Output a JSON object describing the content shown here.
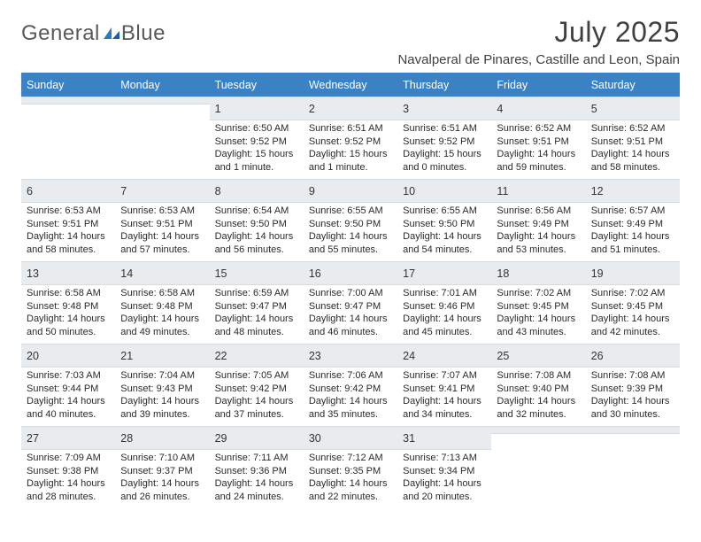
{
  "brand": {
    "word1": "General",
    "word2": "Blue"
  },
  "title": "July 2025",
  "location": "Navalperal de Pinares, Castille and Leon, Spain",
  "colors": {
    "header_blue": "#3b82c4",
    "cell_header_bg": "#e8ecef",
    "text_dark": "#333333",
    "text_body": "#2a2a2a",
    "logo_gray": "#58595b",
    "logo_blue": "#2b7bbf"
  },
  "dayNames": [
    "Sunday",
    "Monday",
    "Tuesday",
    "Wednesday",
    "Thursday",
    "Friday",
    "Saturday"
  ],
  "weeks": [
    [
      {
        "n": "",
        "lines": []
      },
      {
        "n": "",
        "lines": []
      },
      {
        "n": "1",
        "lines": [
          "Sunrise: 6:50 AM",
          "Sunset: 9:52 PM",
          "Daylight: 15 hours",
          "and 1 minute."
        ]
      },
      {
        "n": "2",
        "lines": [
          "Sunrise: 6:51 AM",
          "Sunset: 9:52 PM",
          "Daylight: 15 hours",
          "and 1 minute."
        ]
      },
      {
        "n": "3",
        "lines": [
          "Sunrise: 6:51 AM",
          "Sunset: 9:52 PM",
          "Daylight: 15 hours",
          "and 0 minutes."
        ]
      },
      {
        "n": "4",
        "lines": [
          "Sunrise: 6:52 AM",
          "Sunset: 9:51 PM",
          "Daylight: 14 hours",
          "and 59 minutes."
        ]
      },
      {
        "n": "5",
        "lines": [
          "Sunrise: 6:52 AM",
          "Sunset: 9:51 PM",
          "Daylight: 14 hours",
          "and 58 minutes."
        ]
      }
    ],
    [
      {
        "n": "6",
        "lines": [
          "Sunrise: 6:53 AM",
          "Sunset: 9:51 PM",
          "Daylight: 14 hours",
          "and 58 minutes."
        ]
      },
      {
        "n": "7",
        "lines": [
          "Sunrise: 6:53 AM",
          "Sunset: 9:51 PM",
          "Daylight: 14 hours",
          "and 57 minutes."
        ]
      },
      {
        "n": "8",
        "lines": [
          "Sunrise: 6:54 AM",
          "Sunset: 9:50 PM",
          "Daylight: 14 hours",
          "and 56 minutes."
        ]
      },
      {
        "n": "9",
        "lines": [
          "Sunrise: 6:55 AM",
          "Sunset: 9:50 PM",
          "Daylight: 14 hours",
          "and 55 minutes."
        ]
      },
      {
        "n": "10",
        "lines": [
          "Sunrise: 6:55 AM",
          "Sunset: 9:50 PM",
          "Daylight: 14 hours",
          "and 54 minutes."
        ]
      },
      {
        "n": "11",
        "lines": [
          "Sunrise: 6:56 AM",
          "Sunset: 9:49 PM",
          "Daylight: 14 hours",
          "and 53 minutes."
        ]
      },
      {
        "n": "12",
        "lines": [
          "Sunrise: 6:57 AM",
          "Sunset: 9:49 PM",
          "Daylight: 14 hours",
          "and 51 minutes."
        ]
      }
    ],
    [
      {
        "n": "13",
        "lines": [
          "Sunrise: 6:58 AM",
          "Sunset: 9:48 PM",
          "Daylight: 14 hours",
          "and 50 minutes."
        ]
      },
      {
        "n": "14",
        "lines": [
          "Sunrise: 6:58 AM",
          "Sunset: 9:48 PM",
          "Daylight: 14 hours",
          "and 49 minutes."
        ]
      },
      {
        "n": "15",
        "lines": [
          "Sunrise: 6:59 AM",
          "Sunset: 9:47 PM",
          "Daylight: 14 hours",
          "and 48 minutes."
        ]
      },
      {
        "n": "16",
        "lines": [
          "Sunrise: 7:00 AM",
          "Sunset: 9:47 PM",
          "Daylight: 14 hours",
          "and 46 minutes."
        ]
      },
      {
        "n": "17",
        "lines": [
          "Sunrise: 7:01 AM",
          "Sunset: 9:46 PM",
          "Daylight: 14 hours",
          "and 45 minutes."
        ]
      },
      {
        "n": "18",
        "lines": [
          "Sunrise: 7:02 AM",
          "Sunset: 9:45 PM",
          "Daylight: 14 hours",
          "and 43 minutes."
        ]
      },
      {
        "n": "19",
        "lines": [
          "Sunrise: 7:02 AM",
          "Sunset: 9:45 PM",
          "Daylight: 14 hours",
          "and 42 minutes."
        ]
      }
    ],
    [
      {
        "n": "20",
        "lines": [
          "Sunrise: 7:03 AM",
          "Sunset: 9:44 PM",
          "Daylight: 14 hours",
          "and 40 minutes."
        ]
      },
      {
        "n": "21",
        "lines": [
          "Sunrise: 7:04 AM",
          "Sunset: 9:43 PM",
          "Daylight: 14 hours",
          "and 39 minutes."
        ]
      },
      {
        "n": "22",
        "lines": [
          "Sunrise: 7:05 AM",
          "Sunset: 9:42 PM",
          "Daylight: 14 hours",
          "and 37 minutes."
        ]
      },
      {
        "n": "23",
        "lines": [
          "Sunrise: 7:06 AM",
          "Sunset: 9:42 PM",
          "Daylight: 14 hours",
          "and 35 minutes."
        ]
      },
      {
        "n": "24",
        "lines": [
          "Sunrise: 7:07 AM",
          "Sunset: 9:41 PM",
          "Daylight: 14 hours",
          "and 34 minutes."
        ]
      },
      {
        "n": "25",
        "lines": [
          "Sunrise: 7:08 AM",
          "Sunset: 9:40 PM",
          "Daylight: 14 hours",
          "and 32 minutes."
        ]
      },
      {
        "n": "26",
        "lines": [
          "Sunrise: 7:08 AM",
          "Sunset: 9:39 PM",
          "Daylight: 14 hours",
          "and 30 minutes."
        ]
      }
    ],
    [
      {
        "n": "27",
        "lines": [
          "Sunrise: 7:09 AM",
          "Sunset: 9:38 PM",
          "Daylight: 14 hours",
          "and 28 minutes."
        ]
      },
      {
        "n": "28",
        "lines": [
          "Sunrise: 7:10 AM",
          "Sunset: 9:37 PM",
          "Daylight: 14 hours",
          "and 26 minutes."
        ]
      },
      {
        "n": "29",
        "lines": [
          "Sunrise: 7:11 AM",
          "Sunset: 9:36 PM",
          "Daylight: 14 hours",
          "and 24 minutes."
        ]
      },
      {
        "n": "30",
        "lines": [
          "Sunrise: 7:12 AM",
          "Sunset: 9:35 PM",
          "Daylight: 14 hours",
          "and 22 minutes."
        ]
      },
      {
        "n": "31",
        "lines": [
          "Sunrise: 7:13 AM",
          "Sunset: 9:34 PM",
          "Daylight: 14 hours",
          "and 20 minutes."
        ]
      },
      {
        "n": "",
        "lines": []
      },
      {
        "n": "",
        "lines": []
      }
    ]
  ]
}
